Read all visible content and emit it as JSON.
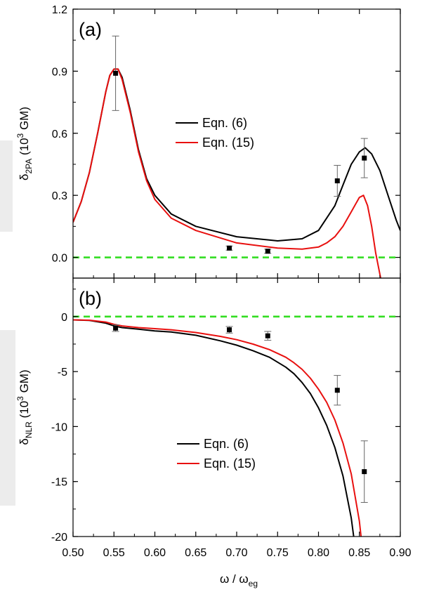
{
  "colors": {
    "black_curve": "#000000",
    "red_curve": "#e8100f",
    "zero_line": "#33dd22",
    "axes": "#000000"
  },
  "xaxis": {
    "label_main": "ω / ω",
    "label_sub": "eg",
    "lim": [
      0.5,
      0.9
    ],
    "ticks": [
      "0.50",
      "0.55",
      "0.60",
      "0.65",
      "0.70",
      "0.75",
      "0.80",
      "0.85",
      "0.90"
    ]
  },
  "chart_data": [
    {
      "panel_label": "(a)",
      "type": "line",
      "ylabel": {
        "sym": "δ",
        "sub": "2PA",
        "unit": " (10",
        "sup": "3",
        "unit_end": " GM)"
      },
      "ylim": [
        -0.1,
        1.2
      ],
      "yticks": [
        "0.0",
        "0.3",
        "0.6",
        "0.9",
        "1.2"
      ],
      "ytick_values": [
        0.0,
        0.3,
        0.6,
        0.9,
        1.2
      ],
      "legend": {
        "placement": "center",
        "entries": [
          "Eqn. (6)",
          "Eqn. (15)"
        ]
      },
      "reference_line_y": 0,
      "series": [
        {
          "name": "Eqn. (6)",
          "color": "#000000",
          "x": [
            0.5,
            0.51,
            0.52,
            0.53,
            0.54,
            0.545,
            0.55,
            0.555,
            0.56,
            0.57,
            0.58,
            0.59,
            0.6,
            0.62,
            0.65,
            0.7,
            0.75,
            0.78,
            0.8,
            0.82,
            0.83,
            0.84,
            0.85,
            0.857,
            0.865,
            0.875,
            0.885,
            0.895,
            0.9
          ],
          "y": [
            0.17,
            0.27,
            0.41,
            0.6,
            0.8,
            0.88,
            0.91,
            0.91,
            0.87,
            0.71,
            0.52,
            0.38,
            0.3,
            0.21,
            0.15,
            0.1,
            0.08,
            0.09,
            0.13,
            0.25,
            0.35,
            0.45,
            0.51,
            0.53,
            0.5,
            0.42,
            0.3,
            0.18,
            0.13
          ]
        },
        {
          "name": "Eqn. (15)",
          "color": "#e8100f",
          "x": [
            0.5,
            0.51,
            0.52,
            0.53,
            0.54,
            0.545,
            0.55,
            0.555,
            0.56,
            0.57,
            0.58,
            0.59,
            0.6,
            0.62,
            0.65,
            0.7,
            0.75,
            0.78,
            0.8,
            0.81,
            0.82,
            0.83,
            0.84,
            0.85,
            0.855,
            0.86,
            0.865,
            0.87,
            0.876
          ],
          "y": [
            0.17,
            0.27,
            0.41,
            0.6,
            0.8,
            0.88,
            0.91,
            0.91,
            0.86,
            0.7,
            0.51,
            0.37,
            0.28,
            0.19,
            0.13,
            0.07,
            0.045,
            0.04,
            0.05,
            0.07,
            0.1,
            0.15,
            0.22,
            0.29,
            0.3,
            0.25,
            0.15,
            0.02,
            -0.1
          ]
        }
      ],
      "points": [
        {
          "x": 0.552,
          "y": 0.89,
          "err": 0.18
        },
        {
          "x": 0.691,
          "y": 0.045,
          "err": 0.01
        },
        {
          "x": 0.738,
          "y": 0.03,
          "err": 0.01
        },
        {
          "x": 0.823,
          "y": 0.37,
          "err": 0.075
        },
        {
          "x": 0.856,
          "y": 0.48,
          "err": 0.095
        }
      ]
    },
    {
      "panel_label": "(b)",
      "type": "line",
      "ylabel": {
        "sym": "δ",
        "sub": "NLR",
        "unit": " (10",
        "sup": "3",
        "unit_end": " GM)"
      },
      "ylim": [
        -20,
        3.5
      ],
      "yticks": [
        "0",
        "-5",
        "-10",
        "-15",
        "-20"
      ],
      "ytick_values": [
        0,
        -5,
        -10,
        -15,
        -20
      ],
      "legend": {
        "placement": "lower-center",
        "entries": [
          "Eqn. (6)",
          "Eqn. (15)"
        ]
      },
      "reference_line_y": 0,
      "series": [
        {
          "name": "Eqn. (6)",
          "color": "#000000",
          "x": [
            0.5,
            0.52,
            0.54,
            0.55,
            0.56,
            0.58,
            0.6,
            0.62,
            0.65,
            0.68,
            0.7,
            0.72,
            0.74,
            0.76,
            0.77,
            0.78,
            0.79,
            0.8,
            0.81,
            0.82,
            0.83,
            0.84,
            0.843
          ],
          "y": [
            -0.3,
            -0.35,
            -0.6,
            -0.85,
            -1.0,
            -1.15,
            -1.3,
            -1.4,
            -1.7,
            -2.2,
            -2.6,
            -3.1,
            -3.7,
            -4.6,
            -5.2,
            -6.0,
            -7.0,
            -8.3,
            -9.9,
            -11.9,
            -14.5,
            -18.3,
            -20
          ]
        },
        {
          "name": "Eqn. (15)",
          "color": "#e8100f",
          "x": [
            0.5,
            0.52,
            0.54,
            0.55,
            0.56,
            0.58,
            0.6,
            0.62,
            0.65,
            0.68,
            0.7,
            0.72,
            0.74,
            0.76,
            0.77,
            0.78,
            0.79,
            0.8,
            0.81,
            0.82,
            0.83,
            0.84,
            0.85,
            0.852
          ],
          "y": [
            -0.3,
            -0.33,
            -0.5,
            -0.7,
            -0.85,
            -1.0,
            -1.1,
            -1.2,
            -1.45,
            -1.8,
            -2.1,
            -2.5,
            -3.0,
            -3.7,
            -4.2,
            -4.8,
            -5.6,
            -6.6,
            -7.8,
            -9.4,
            -11.5,
            -14.3,
            -18.6,
            -20
          ]
        }
      ],
      "points": [
        {
          "x": 0.552,
          "y": -1.05,
          "err": 0.3
        },
        {
          "x": 0.691,
          "y": -1.2,
          "err": 0.3
        },
        {
          "x": 0.738,
          "y": -1.75,
          "err": 0.4
        },
        {
          "x": 0.823,
          "y": -6.7,
          "err": 1.35
        },
        {
          "x": 0.856,
          "y": -14.1,
          "err": 2.8
        }
      ]
    }
  ]
}
